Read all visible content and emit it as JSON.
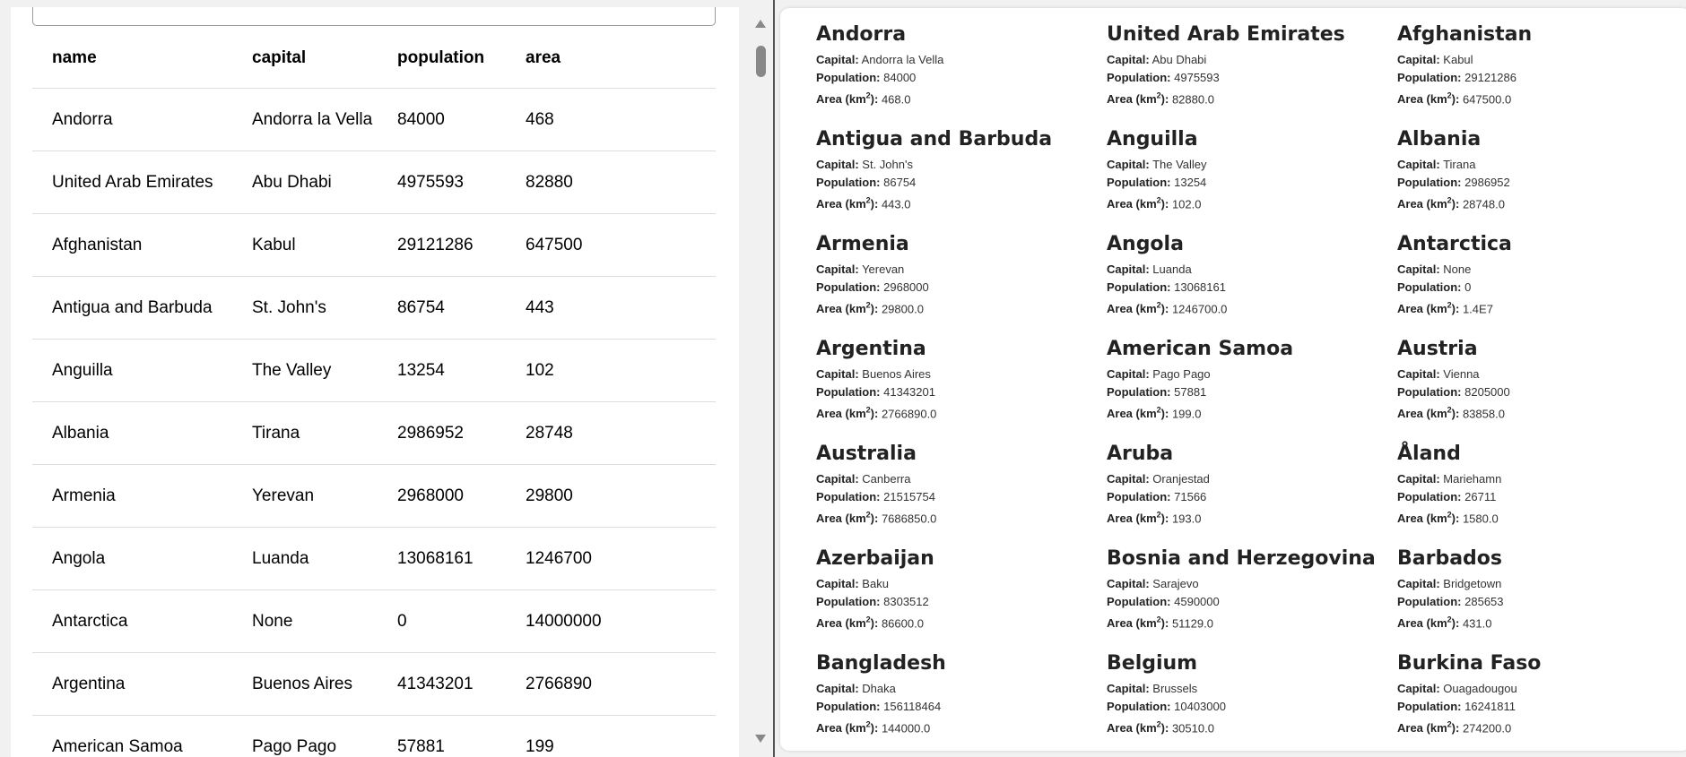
{
  "table": {
    "headers": [
      "name",
      "capital",
      "population",
      "area"
    ],
    "rows": [
      [
        "Andorra",
        "Andorra la Vella",
        "84000",
        "468"
      ],
      [
        "United Arab Emirates",
        "Abu Dhabi",
        "4975593",
        "82880"
      ],
      [
        "Afghanistan",
        "Kabul",
        "29121286",
        "647500"
      ],
      [
        "Antigua and Barbuda",
        "St. John's",
        "86754",
        "443"
      ],
      [
        "Anguilla",
        "The Valley",
        "13254",
        "102"
      ],
      [
        "Albania",
        "Tirana",
        "2986952",
        "28748"
      ],
      [
        "Armenia",
        "Yerevan",
        "2968000",
        "29800"
      ],
      [
        "Angola",
        "Luanda",
        "13068161",
        "1246700"
      ],
      [
        "Antarctica",
        "None",
        "0",
        "14000000"
      ],
      [
        "Argentina",
        "Buenos Aires",
        "41343201",
        "2766890"
      ],
      [
        "American Samoa",
        "Pago Pago",
        "57881",
        "199"
      ]
    ]
  },
  "cards": {
    "labels": {
      "capital": "Capital:",
      "population": "Population:",
      "area": "Area (km",
      "area_sup": "2",
      "area_end": "):"
    },
    "items": [
      {
        "name": "Andorra",
        "capital": "Andorra la Vella",
        "population": "84000",
        "area": "468.0"
      },
      {
        "name": "United Arab Emirates",
        "capital": "Abu Dhabi",
        "population": "4975593",
        "area": "82880.0"
      },
      {
        "name": "Afghanistan",
        "capital": "Kabul",
        "population": "29121286",
        "area": "647500.0"
      },
      {
        "name": "Antigua and Barbuda",
        "capital": "St. John's",
        "population": "86754",
        "area": "443.0"
      },
      {
        "name": "Anguilla",
        "capital": "The Valley",
        "population": "13254",
        "area": "102.0"
      },
      {
        "name": "Albania",
        "capital": "Tirana",
        "population": "2986952",
        "area": "28748.0"
      },
      {
        "name": "Armenia",
        "capital": "Yerevan",
        "population": "2968000",
        "area": "29800.0"
      },
      {
        "name": "Angola",
        "capital": "Luanda",
        "population": "13068161",
        "area": "1246700.0"
      },
      {
        "name": "Antarctica",
        "capital": "None",
        "population": "0",
        "area": "1.4E7"
      },
      {
        "name": "Argentina",
        "capital": "Buenos Aires",
        "population": "41343201",
        "area": "2766890.0"
      },
      {
        "name": "American Samoa",
        "capital": "Pago Pago",
        "population": "57881",
        "area": "199.0"
      },
      {
        "name": "Austria",
        "capital": "Vienna",
        "population": "8205000",
        "area": "83858.0"
      },
      {
        "name": "Australia",
        "capital": "Canberra",
        "population": "21515754",
        "area": "7686850.0"
      },
      {
        "name": "Aruba",
        "capital": "Oranjestad",
        "population": "71566",
        "area": "193.0"
      },
      {
        "name": "Åland",
        "capital": "Mariehamn",
        "population": "26711",
        "area": "1580.0"
      },
      {
        "name": "Azerbaijan",
        "capital": "Baku",
        "population": "8303512",
        "area": "86600.0"
      },
      {
        "name": "Bosnia and Herzegovina",
        "capital": "Sarajevo",
        "population": "4590000",
        "area": "51129.0"
      },
      {
        "name": "Barbados",
        "capital": "Bridgetown",
        "population": "285653",
        "area": "431.0"
      },
      {
        "name": "Bangladesh",
        "capital": "Dhaka",
        "population": "156118464",
        "area": "144000.0"
      },
      {
        "name": "Belgium",
        "capital": "Brussels",
        "population": "10403000",
        "area": "30510.0"
      },
      {
        "name": "Burkina Faso",
        "capital": "Ouagadougou",
        "population": "16241811",
        "area": "274200.0"
      }
    ]
  }
}
